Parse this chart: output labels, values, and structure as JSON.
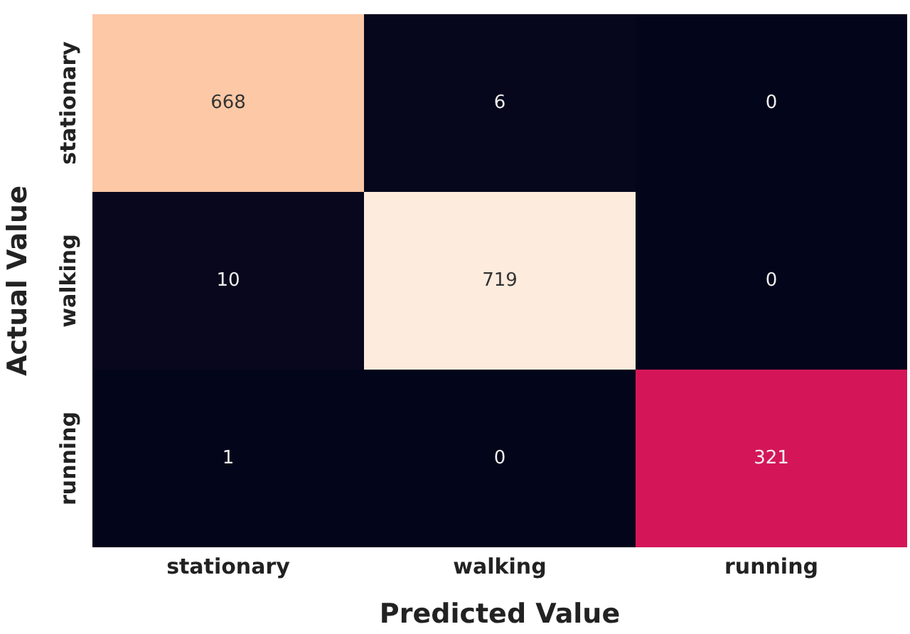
{
  "chart_data": {
    "type": "heatmap",
    "xlabel": "Predicted Value",
    "ylabel": "Actual Value",
    "categories": [
      "stationary",
      "walking",
      "running"
    ],
    "y_categories": [
      "stationary",
      "walking",
      "running"
    ],
    "cells": [
      [
        668,
        6,
        0
      ],
      [
        10,
        719,
        0
      ],
      [
        1,
        0,
        321
      ]
    ],
    "data_labels": true
  }
}
